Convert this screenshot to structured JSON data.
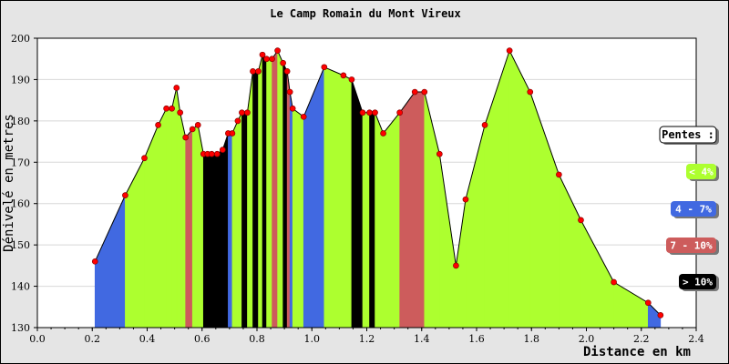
{
  "chart_data": {
    "type": "area",
    "title": "Le Camp Romain du Mont Vireux",
    "xlabel": "Distance en km",
    "ylabel": "Dénivelé en metres",
    "xlim": [
      0.0,
      2.4
    ],
    "ylim": [
      130,
      200
    ],
    "x_ticks": [
      "0.0",
      "0.2",
      "0.4",
      "0.6",
      "0.8",
      "1.0",
      "1.2",
      "1.4",
      "1.6",
      "1.8",
      "2.0",
      "2.2",
      "2.4"
    ],
    "y_ticks": [
      "130",
      "140",
      "150",
      "160",
      "170",
      "180",
      "190",
      "200"
    ],
    "grid": true,
    "points": [
      [
        0.21,
        146
      ],
      [
        0.32,
        162
      ],
      [
        0.39,
        171
      ],
      [
        0.44,
        179
      ],
      [
        0.47,
        183
      ],
      [
        0.49,
        183
      ],
      [
        0.507,
        188
      ],
      [
        0.52,
        182
      ],
      [
        0.54,
        176
      ],
      [
        0.565,
        178
      ],
      [
        0.585,
        179
      ],
      [
        0.605,
        172
      ],
      [
        0.62,
        172
      ],
      [
        0.635,
        172
      ],
      [
        0.655,
        172
      ],
      [
        0.675,
        173
      ],
      [
        0.695,
        177
      ],
      [
        0.71,
        177
      ],
      [
        0.73,
        180
      ],
      [
        0.745,
        182
      ],
      [
        0.765,
        182
      ],
      [
        0.785,
        192
      ],
      [
        0.805,
        192
      ],
      [
        0.82,
        196
      ],
      [
        0.835,
        195
      ],
      [
        0.855,
        195
      ],
      [
        0.875,
        197
      ],
      [
        0.895,
        194
      ],
      [
        0.91,
        192
      ],
      [
        0.92,
        187
      ],
      [
        0.93,
        183
      ],
      [
        0.97,
        181
      ],
      [
        1.045,
        193
      ],
      [
        1.115,
        191
      ],
      [
        1.145,
        190
      ],
      [
        1.185,
        182
      ],
      [
        1.21,
        182
      ],
      [
        1.23,
        182
      ],
      [
        1.26,
        177
      ],
      [
        1.32,
        182
      ],
      [
        1.375,
        187
      ],
      [
        1.41,
        187
      ],
      [
        1.465,
        172
      ],
      [
        1.525,
        145
      ],
      [
        1.56,
        161
      ],
      [
        1.63,
        179
      ],
      [
        1.72,
        197
      ],
      [
        1.795,
        187
      ],
      [
        1.9,
        167
      ],
      [
        1.98,
        156
      ],
      [
        2.1,
        141
      ],
      [
        2.225,
        136
      ],
      [
        2.27,
        133
      ]
    ],
    "segment_classes": [
      1,
      0,
      0,
      0,
      0,
      0,
      0,
      0,
      2,
      0,
      0,
      3,
      3,
      3,
      3,
      3,
      1,
      0,
      0,
      3,
      0,
      3,
      0,
      3,
      0,
      2,
      0,
      3,
      2,
      1,
      0,
      1,
      0,
      0,
      3,
      0,
      3,
      0,
      0,
      2,
      2,
      0,
      0,
      0,
      0,
      0,
      0,
      0,
      0,
      0,
      0,
      1
    ],
    "legend": {
      "title": "Pentes :",
      "placement": "right",
      "entries": [
        {
          "label": "< 4%",
          "color": "#adff2f",
          "text_color": "#ffffff"
        },
        {
          "label": "4 - 7%",
          "color": "#4169e1",
          "text_color": "#ffffff"
        },
        {
          "label": "7 - 10%",
          "color": "#cd5c5c",
          "text_color": "#ffffff"
        },
        {
          "label": "> 10%",
          "color": "#000000",
          "text_color": "#ffffff"
        }
      ]
    },
    "marker_color": "#ff0000"
  }
}
